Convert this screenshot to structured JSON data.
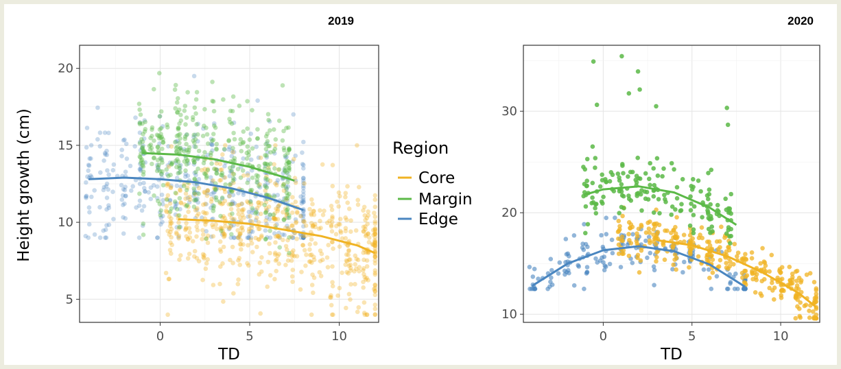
{
  "legend": {
    "title": "Region",
    "placement": "right of left panel",
    "items": [
      {
        "name": "Core",
        "color": "#F0B323"
      },
      {
        "name": "Margin",
        "color": "#5BB947"
      },
      {
        "name": "Edge",
        "color": "#4A86C0"
      }
    ]
  },
  "ylabel": "Height growth (cm)",
  "chart_data": [
    {
      "type": "scatter",
      "title": "2019",
      "xlabel": "TD",
      "ylabel": "Height growth (cm)",
      "xlim": [
        -4.5,
        12.2
      ],
      "ylim": [
        3.5,
        21.5
      ],
      "xticks": [
        0,
        5,
        10
      ],
      "yticks": [
        5,
        10,
        15,
        20
      ],
      "grid": true,
      "series": [
        {
          "name": "Core",
          "color": "#F0B323",
          "x_range": [
            0.5,
            12
          ],
          "y_range": [
            4,
            15
          ],
          "point_opacity": 0.35,
          "trend": {
            "x": [
              1,
              3,
              5,
              7,
              9,
              11,
              12
            ],
            "y": [
              10.2,
              10.1,
              9.9,
              9.5,
              9.1,
              8.5,
              8.0
            ]
          }
        },
        {
          "name": "Margin",
          "color": "#5BB947",
          "x_range": [
            -1,
            7.2
          ],
          "y_range": [
            8,
            20.6
          ],
          "point_opacity": 0.4,
          "trend": {
            "x": [
              -1,
              1,
              3,
              5,
              7,
              7.5
            ],
            "y": [
              14.5,
              14.4,
              14.1,
              13.6,
              12.9,
              12.7
            ]
          }
        },
        {
          "name": "Edge",
          "color": "#4A86C0",
          "x_range": [
            -4,
            8
          ],
          "y_range": [
            9,
            19.5
          ],
          "point_opacity": 0.3,
          "trend": {
            "x": [
              -4,
              -2,
              0,
              2,
              4,
              6,
              8
            ],
            "y": [
              12.8,
              12.9,
              12.8,
              12.6,
              12.2,
              11.6,
              10.8
            ]
          }
        }
      ]
    },
    {
      "type": "scatter",
      "title": "2020",
      "xlabel": "TD",
      "ylabel": "",
      "xlim": [
        -4.5,
        12.2
      ],
      "ylim": [
        9.2,
        36.5
      ],
      "xticks": [
        0,
        5,
        10
      ],
      "yticks": [
        10,
        20,
        30
      ],
      "grid": true,
      "series": [
        {
          "name": "Core",
          "color": "#F0B323",
          "x_range": [
            1,
            12
          ],
          "y_range": [
            9.6,
            20.5
          ],
          "point_opacity": 0.75,
          "trend": {
            "x": [
              3,
              5,
              7,
              9,
              11,
              12
            ],
            "y": [
              17.3,
              16.8,
              15.7,
              14.1,
              12.1,
              10.7
            ]
          }
        },
        {
          "name": "Margin",
          "color": "#5BB947",
          "x_range": [
            -1,
            7.2
          ],
          "y_range": [
            16,
            35.8
          ],
          "point_opacity": 0.85,
          "trend": {
            "x": [
              -1,
              0,
              2,
              4,
              6,
              7.5
            ],
            "y": [
              21.8,
              22.3,
              22.6,
              22.0,
              20.5,
              18.8
            ]
          }
        },
        {
          "name": "Edge",
          "color": "#4A86C0",
          "x_range": [
            -4,
            8
          ],
          "y_range": [
            12.5,
            19.5
          ],
          "point_opacity": 0.6,
          "trend": {
            "x": [
              -4,
              -2,
              0,
              2,
              4,
              6,
              8
            ],
            "y": [
              12.8,
              15.0,
              16.3,
              16.7,
              16.2,
              14.9,
              12.7
            ]
          }
        }
      ]
    }
  ]
}
